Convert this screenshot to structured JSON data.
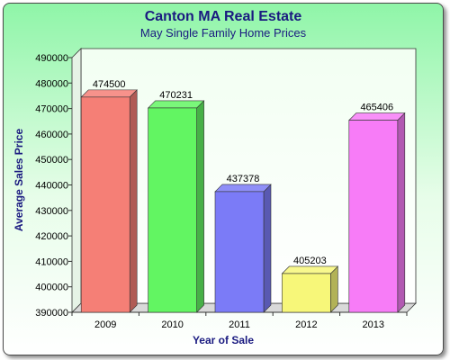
{
  "chart_data": {
    "type": "bar",
    "title": "Canton MA Real Estate",
    "subtitle": "May Single Family Home Prices",
    "xlabel": "Year of Sale",
    "ylabel": "Average Sales Price",
    "categories": [
      "2009",
      "2010",
      "2011",
      "2012",
      "2013"
    ],
    "values": [
      474500,
      470231,
      437378,
      405203,
      465406
    ],
    "ylim": [
      390000,
      490000
    ],
    "yticks": [
      "390000",
      "400000",
      "410000",
      "420000",
      "430000",
      "440000",
      "450000",
      "460000",
      "470000",
      "480000",
      "490000"
    ],
    "grid": false,
    "legend": "none",
    "bar_colors": [
      "#f57f76",
      "#62f562",
      "#7b7bf7",
      "#f7f779",
      "#f77cf7"
    ],
    "data_labels": [
      "474500",
      "470231",
      "437378",
      "405203",
      "465406"
    ]
  },
  "colors": {
    "title": "#1a1a80",
    "background_top": "#8ff5a8",
    "background_bottom": "#ffffff",
    "plot_background": "#fbfff9"
  }
}
